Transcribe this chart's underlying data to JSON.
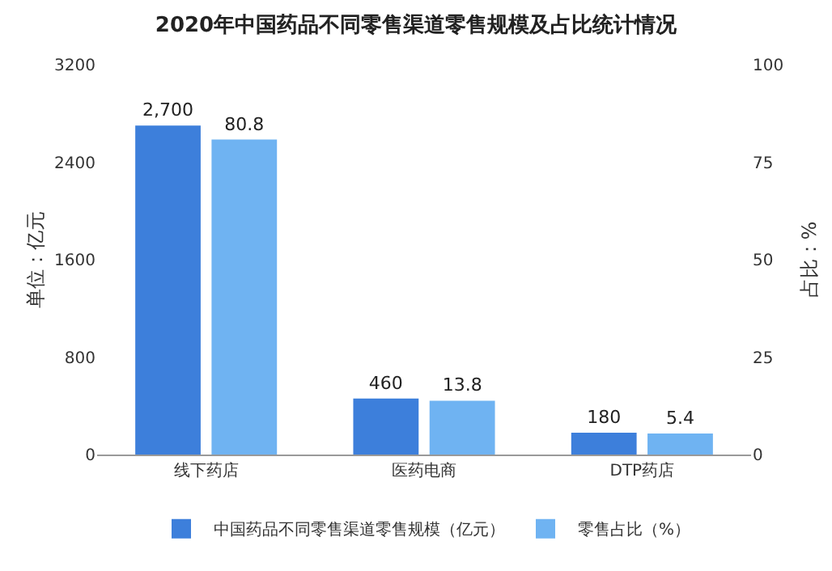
{
  "chart_data": {
    "type": "bar",
    "title": "2020年中国药品不同零售渠道零售规模及占比统计情况",
    "categories": [
      "线下药店",
      "医药电商",
      "DTP药店"
    ],
    "ylabel": "单位：亿元",
    "y2label": "占比：%",
    "ylim": [
      0,
      3200
    ],
    "yticks": [
      0,
      800,
      1600,
      2400,
      3200
    ],
    "y2lim": [
      0,
      100
    ],
    "y2ticks": [
      0,
      25,
      50,
      75,
      100
    ],
    "grid": false,
    "legend": "bottom",
    "series": [
      {
        "name": "中国药品不同零售渠道零售规模（亿元）",
        "color": "#3d7fdb",
        "values": [
          2700,
          460,
          180
        ],
        "value_labels": [
          "2,700",
          "460",
          "180"
        ]
      },
      {
        "name": "零售占比（%）",
        "color": "#6fb3f2",
        "values": [
          80.8,
          13.8,
          5.4
        ],
        "value_labels": [
          "80.8",
          "13.8",
          "5.4"
        ],
        "axis": "y2"
      }
    ]
  }
}
